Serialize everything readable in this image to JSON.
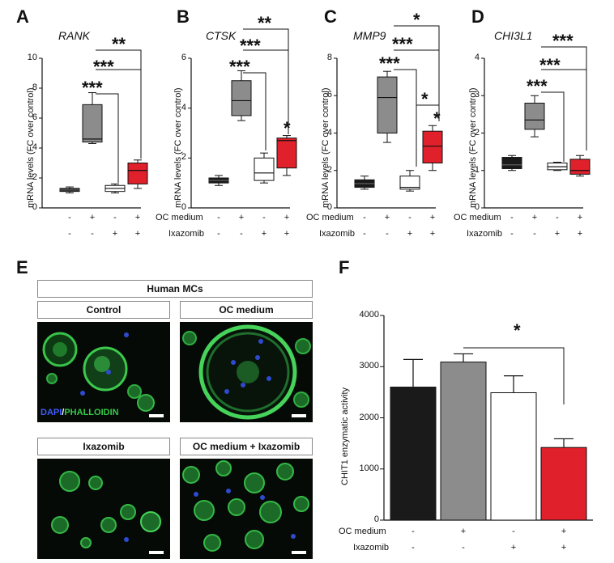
{
  "panels": {
    "A": {
      "letter": "A",
      "gene": "RANK"
    },
    "B": {
      "letter": "B",
      "gene": "CTSK"
    },
    "C": {
      "letter": "C",
      "gene": "MMP9"
    },
    "D": {
      "letter": "D",
      "gene": "CHI3L1"
    },
    "E": {
      "letter": "E"
    },
    "F": {
      "letter": "F"
    }
  },
  "ylabel_mrna": "mRNA levels (FC over control)",
  "row_oc": "OC medium",
  "row_ixa": "Ixazomib",
  "signs_oc": [
    "-",
    "+",
    "-",
    "+"
  ],
  "signs_ixa": [
    "-",
    "-",
    "+",
    "+"
  ],
  "colors": {
    "black": "#1a1a1a",
    "grey": "#8c8c8c",
    "white": "#ffffff",
    "red": "#e0202a"
  },
  "chart_data": [
    {
      "type": "box",
      "panel": "A",
      "ylim": [
        0,
        10
      ],
      "yticks": [
        "0",
        "2",
        "4",
        "6",
        "8",
        "10"
      ],
      "groups": [
        {
          "min": 1.0,
          "q1": 1.1,
          "median": 1.2,
          "q3": 1.3,
          "max": 1.4
        },
        {
          "min": 4.3,
          "q1": 4.4,
          "median": 4.6,
          "q3": 6.9,
          "max": 7.7
        },
        {
          "min": 1.0,
          "q1": 1.1,
          "median": 1.3,
          "q3": 1.5,
          "max": 1.6
        },
        {
          "min": 1.3,
          "q1": 1.6,
          "median": 2.5,
          "q3": 3.0,
          "max": 3.2
        }
      ],
      "sig": [
        "***",
        "***",
        "**"
      ]
    },
    {
      "type": "box",
      "panel": "B",
      "ylim": [
        0,
        6
      ],
      "yticks": [
        "0",
        "2",
        "4",
        "6"
      ],
      "groups": [
        {
          "min": 0.9,
          "q1": 1.0,
          "median": 1.1,
          "q3": 1.2,
          "max": 1.3
        },
        {
          "min": 3.5,
          "q1": 3.7,
          "median": 4.3,
          "q3": 5.1,
          "max": 5.5
        },
        {
          "min": 1.0,
          "q1": 1.1,
          "median": 1.4,
          "q3": 2.0,
          "max": 2.2
        },
        {
          "min": 1.3,
          "q1": 1.6,
          "median": 2.7,
          "q3": 2.8,
          "max": 2.9
        }
      ],
      "sig": [
        "***",
        "***",
        "**",
        "*"
      ]
    },
    {
      "type": "box",
      "panel": "C",
      "ylim": [
        0,
        8
      ],
      "yticks": [
        "0",
        "2",
        "4",
        "6",
        "8"
      ],
      "groups": [
        {
          "min": 1.0,
          "q1": 1.1,
          "median": 1.3,
          "q3": 1.5,
          "max": 1.7
        },
        {
          "min": 3.5,
          "q1": 4.0,
          "median": 5.9,
          "q3": 7.0,
          "max": 7.3
        },
        {
          "min": 0.9,
          "q1": 1.0,
          "median": 1.1,
          "q3": 1.7,
          "max": 2.0
        },
        {
          "min": 2.0,
          "q1": 2.4,
          "median": 3.3,
          "q3": 4.1,
          "max": 4.4
        }
      ],
      "sig": [
        "***",
        "***",
        "*",
        "*",
        "*"
      ]
    },
    {
      "type": "box",
      "panel": "D",
      "ylim": [
        0,
        4
      ],
      "yticks": [
        "0",
        "1",
        "2",
        "3",
        "4"
      ],
      "groups": [
        {
          "min": 1.0,
          "q1": 1.05,
          "median": 1.15,
          "q3": 1.35,
          "max": 1.4
        },
        {
          "min": 1.9,
          "q1": 2.1,
          "median": 2.35,
          "q3": 2.8,
          "max": 3.0
        },
        {
          "min": 1.0,
          "q1": 1.02,
          "median": 1.1,
          "q3": 1.2,
          "max": 1.22
        },
        {
          "min": 0.85,
          "q1": 0.9,
          "median": 1.0,
          "q3": 1.3,
          "max": 1.4
        }
      ],
      "sig": [
        "***",
        "***",
        "***"
      ]
    },
    {
      "type": "bar",
      "panel": "F",
      "ylabel": "CHIT1 enzymatic activity",
      "ylim": [
        0,
        4000
      ],
      "yticks": [
        "0",
        "1000",
        "2000",
        "3000",
        "4000"
      ],
      "values": [
        2600,
        3090,
        2490,
        1420
      ],
      "errors": [
        540,
        160,
        330,
        170
      ],
      "sig": [
        "*"
      ]
    }
  ],
  "microscopy": {
    "header": "Human MCs",
    "titles": [
      "Control",
      "OC medium",
      "Ixazomib",
      "OC medium + Ixazomib"
    ],
    "stain_dapi": "DAPI",
    "stain_sep": "/",
    "stain_phal": "PHALLOIDIN"
  }
}
